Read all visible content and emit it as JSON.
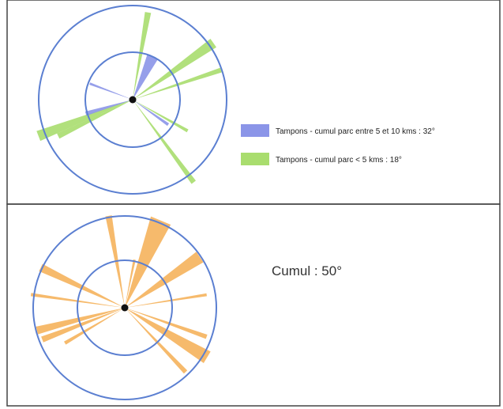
{
  "colors": {
    "circle": "#5b7fd1",
    "dot": "#111111",
    "blue_sector": "#8b95e8",
    "green_sector": "#a9dd6e",
    "orange_sector": "#f5b25c",
    "frame": "#444444"
  },
  "top_panel": {
    "legend": [
      {
        "label": "Tampons - cumul parc entre 5 et 10 kms : 32°",
        "color_key": "blue_sector",
        "icon": "blue-swatch"
      },
      {
        "label": "Tampons - cumul parc < 5 kms : 18°",
        "color_key": "green_sector",
        "icon": "green-swatch"
      }
    ]
  },
  "bottom_panel": {
    "cumul_label": "Cumul : 50°"
  }
}
